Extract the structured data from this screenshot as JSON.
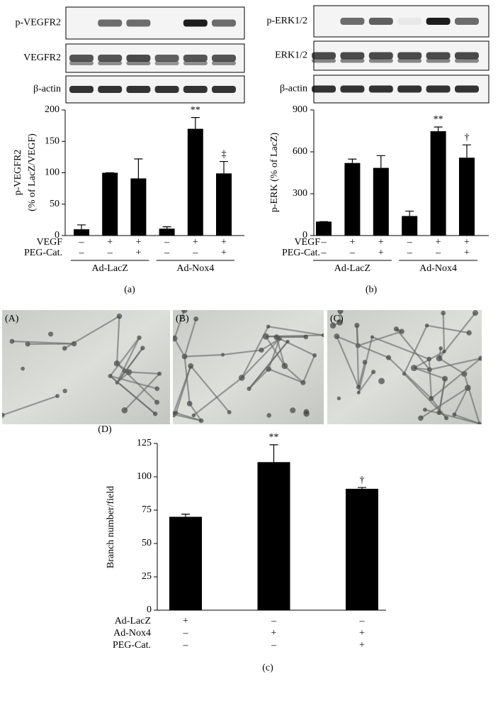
{
  "chart_data": [
    {
      "type": "bar",
      "panel_label": "(a)",
      "blot_labels": [
        "p-VEGFR2",
        "VEGFR2",
        "β-actin"
      ],
      "ylabel": [
        "p-VEGFR2",
        "(% of LacZ/VEGF)"
      ],
      "ylim": [
        0,
        200
      ],
      "yticks": [
        0,
        50,
        100,
        150,
        200
      ],
      "series": [
        {
          "color": "#000000",
          "values": [
            10,
            100,
            91,
            11,
            170,
            99
          ],
          "errors": [
            7,
            0,
            31,
            3,
            18,
            19
          ]
        }
      ],
      "annotations": [
        null,
        null,
        null,
        null,
        "**",
        "‡"
      ],
      "conditions": [
        {
          "label": "VEGF",
          "signs": [
            "–",
            "+",
            "+",
            "–",
            "+",
            "+"
          ]
        },
        {
          "label": "PEG-Cat.",
          "signs": [
            "–",
            "–",
            "+",
            "–",
            "–",
            "+"
          ]
        }
      ],
      "groups": [
        "Ad-LacZ",
        "Ad-Nox4"
      ]
    },
    {
      "type": "bar",
      "panel_label": "(b)",
      "blot_labels": [
        "p-ERK1/2",
        "ERK1/2",
        "β-actin"
      ],
      "ylabel": "p-ERK (% of LacZ)",
      "ylim": [
        0,
        900
      ],
      "yticks": [
        0,
        300,
        600,
        900
      ],
      "series": [
        {
          "color": "#000000",
          "values": [
            100,
            520,
            485,
            140,
            748,
            558
          ],
          "errors": [
            0,
            28,
            88,
            35,
            30,
            92
          ]
        }
      ],
      "annotations": [
        null,
        null,
        null,
        null,
        "**",
        "†"
      ],
      "conditions": [
        {
          "label": "VEGF",
          "signs": [
            "–",
            "+",
            "+",
            "–",
            "+",
            "+"
          ]
        },
        {
          "label": "PEG-Cat.",
          "signs": [
            "–",
            "–",
            "+",
            "–",
            "–",
            "+"
          ]
        }
      ],
      "groups": [
        "Ad-LacZ",
        "Ad-Nox4"
      ]
    },
    {
      "type": "bar",
      "panel_label": "(c)",
      "inset_label": "(D)",
      "ylabel": "Branch number/field",
      "ylim": [
        0,
        125
      ],
      "yticks": [
        0,
        25,
        50,
        75,
        100,
        125
      ],
      "series": [
        {
          "color": "#000000",
          "values": [
            70,
            111,
            91
          ],
          "errors": [
            2,
            13,
            1
          ]
        }
      ],
      "annotations": [
        "",
        "**",
        "†"
      ],
      "conditions": [
        {
          "label": "Ad-LacZ",
          "signs": [
            "+",
            "–",
            "–"
          ]
        },
        {
          "label": "Ad-Nox4",
          "signs": [
            "–",
            "+",
            "+"
          ]
        },
        {
          "label": "PEG-Cat.",
          "signs": [
            "–",
            "–",
            "+"
          ]
        }
      ]
    }
  ],
  "micrographs": [
    "(A)",
    "(B)",
    "(C)"
  ]
}
